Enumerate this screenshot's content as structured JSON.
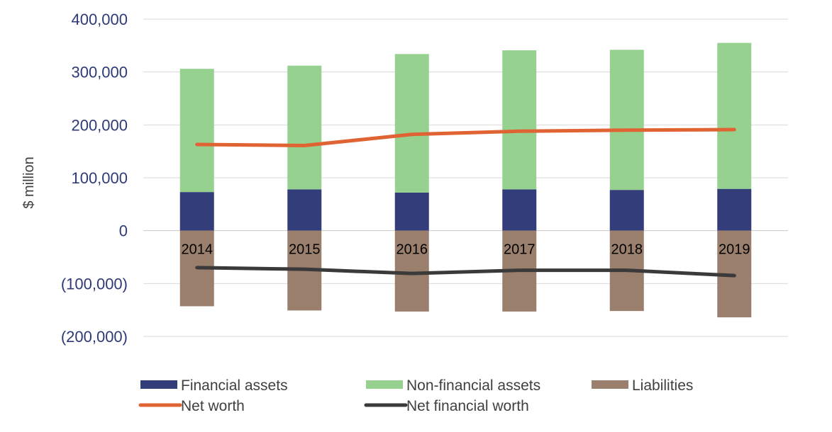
{
  "chart_data": {
    "type": "bar",
    "stacked": true,
    "ylabel": "$ million",
    "xlabel": "",
    "ylim": [
      -200000,
      400000
    ],
    "yticks": [
      400000,
      300000,
      200000,
      100000,
      0,
      -100000,
      -200000
    ],
    "ytick_labels": [
      "400,000",
      "300,000",
      "200,000",
      "100,000",
      "0",
      "(100,000)",
      "(200,000)"
    ],
    "categories": [
      "2014",
      "2015",
      "2016",
      "2017",
      "2018",
      "2019"
    ],
    "bar_series": [
      {
        "name": "Financial assets",
        "color": "#333d7a",
        "values": [
          73000,
          78000,
          72000,
          78000,
          77000,
          79000
        ]
      },
      {
        "name": "Non-financial assets",
        "color": "#97d190",
        "values": [
          233000,
          234000,
          262000,
          263000,
          265000,
          276000
        ]
      },
      {
        "name": "Liabilities",
        "color": "#9a7f6d",
        "values": [
          -143000,
          -151000,
          -153000,
          -153000,
          -152000,
          -164000
        ]
      }
    ],
    "line_series": [
      {
        "name": "Net worth",
        "color": "#e06433",
        "values": [
          163000,
          161000,
          182000,
          188000,
          190000,
          191000
        ]
      },
      {
        "name": "Net financial worth",
        "color": "#3a3a3a",
        "values": [
          -70000,
          -73000,
          -81000,
          -75000,
          -75000,
          -85000
        ]
      }
    ],
    "grid": true,
    "legend_position": "bottom"
  }
}
